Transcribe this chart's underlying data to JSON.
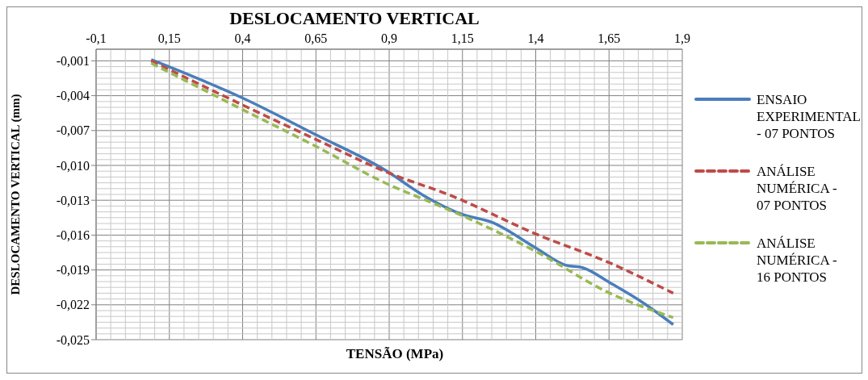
{
  "chart_data": {
    "type": "line",
    "title": "DESLOCAMENTO VERTICAL",
    "xlabel": "TENSÃO (MPa)",
    "ylabel": "DESLOCAMENTO VERTICAL (mm)",
    "xlim": [
      -0.1,
      1.9
    ],
    "xticks": [
      {
        "value": -0.1,
        "label": "-0,1"
      },
      {
        "value": 0.15,
        "label": "0,15"
      },
      {
        "value": 0.4,
        "label": "0,4"
      },
      {
        "value": 0.65,
        "label": "0,65"
      },
      {
        "value": 0.9,
        "label": "0,9"
      },
      {
        "value": 1.15,
        "label": "1,15"
      },
      {
        "value": 1.4,
        "label": "1,4"
      },
      {
        "value": 1.65,
        "label": "1,65"
      },
      {
        "value": 1.9,
        "label": "1,9"
      }
    ],
    "ylim": [
      -0.025,
      0
    ],
    "yticks": [
      {
        "value": -0.025,
        "label": "-0,025"
      },
      {
        "value": -0.022,
        "label": "-0,022"
      },
      {
        "value": -0.019,
        "label": "-0,019"
      },
      {
        "value": -0.016,
        "label": "-0,016"
      },
      {
        "value": -0.013,
        "label": "-0,013"
      },
      {
        "value": -0.01,
        "label": "-0,010"
      },
      {
        "value": -0.007,
        "label": "-0,007"
      },
      {
        "value": -0.004,
        "label": "-0,004"
      },
      {
        "value": -0.001,
        "label": "-0,001"
      }
    ],
    "grid": true,
    "legend": "right",
    "marker": "none",
    "series": [
      {
        "name": "ENSAIO EXPERIMENTAL - 07 PONTOS",
        "color": "#4a7ebb",
        "line_style": "solid",
        "x": [
          0.088,
          0.4,
          0.653,
          0.886,
          1.018,
          1.147,
          1.251,
          1.4,
          1.504,
          1.56,
          1.653,
          1.765,
          1.869
        ],
        "values": [
          -0.0009,
          -0.0042,
          -0.0074,
          -0.0104,
          -0.0126,
          -0.0142,
          -0.0149,
          -0.0171,
          -0.0186,
          -0.0188,
          -0.0201,
          -0.0218,
          -0.0237
        ]
      },
      {
        "name": "ANÁLISE NUMÉRICA - 07 PONTOS",
        "color": "#be4b48",
        "line_style": "dashed",
        "x": [
          0.088,
          0.4,
          0.653,
          0.894,
          1.111,
          1.4,
          1.653,
          1.869
        ],
        "values": [
          -0.001,
          -0.0048,
          -0.0078,
          -0.0106,
          -0.0126,
          -0.0159,
          -0.0184,
          -0.021
        ]
      },
      {
        "name": "ANÁLISE NUMÉRICA - 16 PONTOS",
        "color": "#98b954",
        "line_style": "dashed",
        "x": [
          0.088,
          0.4,
          0.653,
          0.894,
          1.035,
          1.147,
          1.4,
          1.653,
          1.869
        ],
        "values": [
          -0.0012,
          -0.0052,
          -0.0084,
          -0.0116,
          -0.0131,
          -0.0143,
          -0.0174,
          -0.021,
          -0.0231
        ]
      }
    ]
  }
}
